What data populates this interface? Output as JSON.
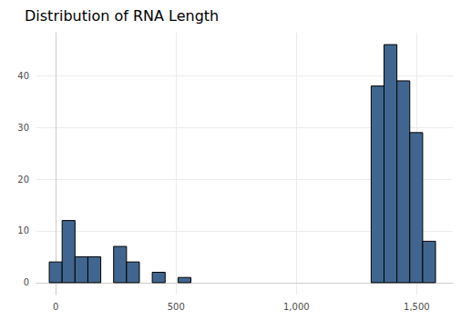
{
  "chart_data": {
    "type": "histogram",
    "title": "Distribution of RNA Length",
    "bins": [
      -26.75,
      26.75,
      80.25,
      133.75,
      187.25,
      240.75,
      294.25,
      347.75,
      401.25,
      454.75,
      508.25,
      561.75,
      615.25,
      668.75,
      722.25,
      775.75,
      829.25,
      882.75,
      936.25,
      989.75,
      1043.25,
      1096.75,
      1150.25,
      1203.75,
      1257.25,
      1310.75,
      1364.25,
      1417.75,
      1471.25,
      1524.75,
      1578.25
    ],
    "values": [
      4,
      12,
      5,
      5,
      0,
      7,
      4,
      0,
      2,
      0,
      1,
      0,
      0,
      0,
      0,
      0,
      0,
      0,
      0,
      0,
      0,
      0,
      0,
      0,
      0,
      38,
      46,
      39,
      29,
      8
    ],
    "color": "#40668f",
    "xlim": [
      -80,
      1650
    ],
    "xticks": [
      0,
      500,
      1000,
      1500
    ],
    "ylim": [
      -2.3,
      48.3
    ],
    "yticks": [
      0,
      10,
      20,
      30,
      40
    ],
    "grid": true
  }
}
